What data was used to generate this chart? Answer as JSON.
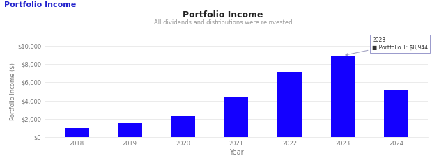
{
  "title": "Portfolio Income",
  "subtitle": "All dividends and distributions were reinvested",
  "header_label": "Portfolio Income",
  "xlabel": "Year",
  "ylabel": "Portfolio Income ($)",
  "years": [
    2018,
    2019,
    2020,
    2021,
    2022,
    2023,
    2024
  ],
  "values": [
    1050,
    1650,
    2400,
    4400,
    7100,
    8944,
    5100
  ],
  "bar_color": "#1400ff",
  "background_color": "#ffffff",
  "grid_color": "#e8e8e8",
  "ylim": [
    0,
    10000
  ],
  "yticks": [
    0,
    2000,
    4000,
    6000,
    8000,
    10000
  ],
  "title_color": "#222222",
  "subtitle_color": "#999999",
  "header_color": "#2222cc",
  "axis_label_color": "#777777",
  "tick_color": "#777777",
  "tooltip_year": "2023",
  "tooltip_text": "Portfolio 1: $8,944",
  "tooltip_bar_index": 5,
  "title_fontsize": 9,
  "subtitle_fontsize": 6,
  "header_fontsize": 8,
  "tick_fontsize": 6,
  "xlabel_fontsize": 7,
  "ylabel_fontsize": 6
}
